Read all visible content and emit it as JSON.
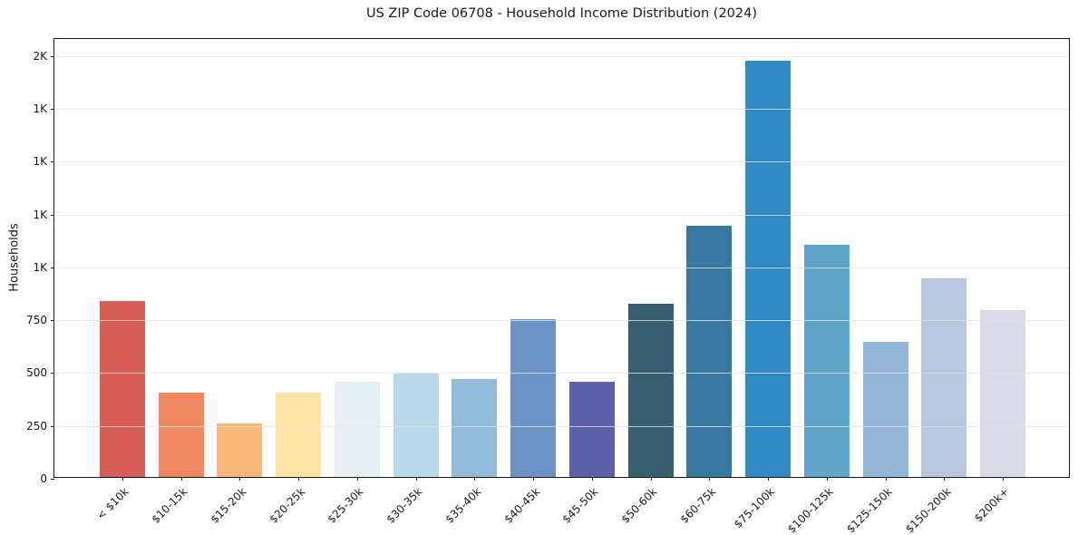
{
  "chart_data": {
    "type": "bar",
    "title": "US ZIP Code 06708 - Household Income Distribution (2024)",
    "xlabel": "",
    "ylabel": "Households",
    "categories": [
      "< $10k",
      "$10-15k",
      "$15-20k",
      "$20-25k",
      "$25-30k",
      "$30-35k",
      "$35-40k",
      "$40-45k",
      "$45-50k",
      "$50-60k",
      "$60-75k",
      "$75-100k",
      "$100-125k",
      "$125-150k",
      "$150-200k",
      "$200k+"
    ],
    "values": [
      830,
      400,
      255,
      400,
      450,
      495,
      465,
      745,
      450,
      820,
      1190,
      1970,
      1100,
      640,
      940,
      790
    ],
    "bar_colors": [
      "#d65d55",
      "#f0875f",
      "#fab777",
      "#fce3a2",
      "#e5f0f5",
      "#b7d9e8",
      "#90bcd9",
      "#6b92c5",
      "#5c5fa9",
      "#365f70",
      "#36789f",
      "#328ac4",
      "#5fa5c9",
      "#92b6d7",
      "#b7c8e0",
      "#d8dae8"
    ],
    "ylim": [
      0,
      2080
    ],
    "yticks": [
      {
        "value": 0,
        "label": "0"
      },
      {
        "value": 250,
        "label": "250"
      },
      {
        "value": 500,
        "label": "500"
      },
      {
        "value": 750,
        "label": "750"
      },
      {
        "value": 1000,
        "label": "1K"
      },
      {
        "value": 1250,
        "label": "1K"
      },
      {
        "value": 1500,
        "label": "1K"
      },
      {
        "value": 1750,
        "label": "1K"
      },
      {
        "value": 2000,
        "label": "2K"
      }
    ],
    "grid": "horizontal",
    "legend": "none",
    "background": "#ffffff",
    "spine_color": "#1a1a1a"
  }
}
